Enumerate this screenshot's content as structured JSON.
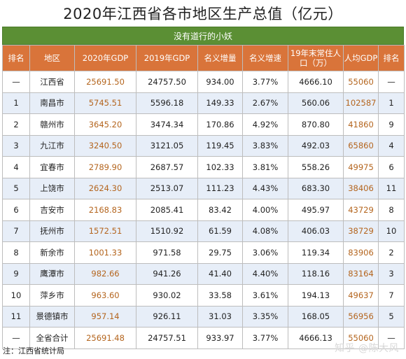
{
  "title": "2020年江西省各市地区生产总值（亿元）",
  "subtitle": "没有道行的小妖",
  "headers": [
    "排名",
    "地区",
    "2020年GDP",
    "2019年GDP",
    "名义增量",
    "名义增速",
    "19年末常住人口（万）",
    "人均GDP",
    "排名"
  ],
  "rows": [
    [
      "—",
      "江西省",
      "25691.50",
      "24757.50",
      "934.00",
      "3.77%",
      "4666.10",
      "55060",
      "—"
    ],
    [
      "1",
      "南昌市",
      "5745.51",
      "5596.18",
      "149.33",
      "2.67%",
      "560.06",
      "102587",
      "1"
    ],
    [
      "2",
      "赣州市",
      "3645.20",
      "3474.34",
      "170.86",
      "4.92%",
      "870.80",
      "41860",
      "9"
    ],
    [
      "3",
      "九江市",
      "3240.50",
      "3121.05",
      "119.45",
      "3.83%",
      "492.03",
      "65860",
      "4"
    ],
    [
      "4",
      "宜春市",
      "2789.90",
      "2687.57",
      "102.33",
      "3.81%",
      "558.26",
      "49975",
      "6"
    ],
    [
      "5",
      "上饶市",
      "2624.30",
      "2513.07",
      "111.23",
      "4.43%",
      "683.30",
      "38406",
      "11"
    ],
    [
      "6",
      "吉安市",
      "2168.83",
      "2085.41",
      "83.42",
      "4.00%",
      "495.97",
      "43729",
      "8"
    ],
    [
      "7",
      "抚州市",
      "1572.51",
      "1510.92",
      "61.59",
      "4.08%",
      "406.03",
      "38729",
      "10"
    ],
    [
      "8",
      "新余市",
      "1001.33",
      "971.58",
      "29.75",
      "3.06%",
      "119.34",
      "83906",
      "2"
    ],
    [
      "9",
      "鹰潭市",
      "982.66",
      "941.26",
      "41.40",
      "4.40%",
      "118.16",
      "83164",
      "3"
    ],
    [
      "10",
      "萍乡市",
      "963.60",
      "930.02",
      "33.58",
      "3.61%",
      "194.13",
      "49637",
      "7"
    ],
    [
      "11",
      "景德镇市",
      "957.14",
      "926.11",
      "31.03",
      "3.35%",
      "168.05",
      "56956",
      "5"
    ],
    [
      "—",
      "全省合计",
      "25691.48",
      "24757.51",
      "933.97",
      "3.77%",
      "4666.13",
      "55060",
      "—"
    ]
  ],
  "footnote": "注：江西省统计局",
  "watermark": "知乎 @陈大风",
  "colors": {
    "header_bg": "#d9743a",
    "banner_bg": "#5b8f34",
    "stripe_bg": "#e7eef8",
    "highlight_text": "#b4651e"
  }
}
